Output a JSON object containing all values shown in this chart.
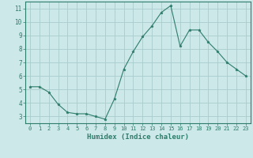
{
  "x": [
    0,
    1,
    2,
    3,
    4,
    5,
    6,
    7,
    8,
    9,
    10,
    11,
    12,
    13,
    14,
    15,
    16,
    17,
    18,
    19,
    20,
    21,
    22,
    23
  ],
  "y": [
    5.2,
    5.2,
    4.8,
    3.9,
    3.3,
    3.2,
    3.2,
    3.0,
    2.8,
    4.3,
    6.5,
    7.8,
    8.9,
    9.7,
    10.7,
    11.2,
    8.2,
    9.4,
    9.4,
    8.5,
    7.8,
    7.0,
    6.5,
    6.0
  ],
  "line_color": "#2e7d6b",
  "marker": "*",
  "marker_size": 2.5,
  "background_color": "#cce8e8",
  "grid_color": "#aacccc",
  "xlabel": "Humidex (Indice chaleur)",
  "ylim": [
    2.5,
    11.5
  ],
  "xlim": [
    -0.5,
    23.5
  ],
  "yticks": [
    3,
    4,
    5,
    6,
    7,
    8,
    9,
    10,
    11
  ],
  "xticks": [
    0,
    1,
    2,
    3,
    4,
    5,
    6,
    7,
    8,
    9,
    10,
    11,
    12,
    13,
    14,
    15,
    16,
    17,
    18,
    19,
    20,
    21,
    22,
    23
  ],
  "tick_color": "#2e7d6b",
  "label_color": "#2e7d6b",
  "axis_color": "#2e7d6b",
  "xlabel_fontsize": 6.5,
  "xtick_fontsize": 5.0,
  "ytick_fontsize": 5.5
}
